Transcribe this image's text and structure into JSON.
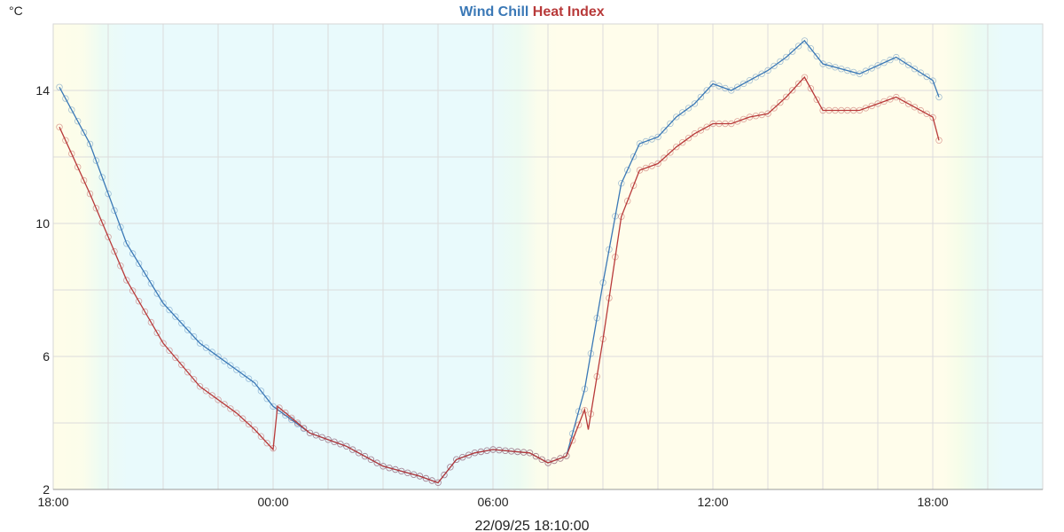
{
  "chart_data": {
    "type": "line",
    "title_parts": [
      {
        "text": "Wind Chill",
        "color": "#3a78b6"
      },
      {
        "text": "Heat Index",
        "color": "#b83a3a"
      }
    ],
    "y_unit": "°C",
    "timestamp": "22/09/25 18:10:00",
    "xlim": [
      0,
      27
    ],
    "ylim": [
      2,
      16
    ],
    "x_ticks": [
      {
        "value": 0,
        "label": "18:00"
      },
      {
        "value": 6,
        "label": "00:00"
      },
      {
        "value": 12,
        "label": "06:00"
      },
      {
        "value": 18,
        "label": "12:00"
      },
      {
        "value": 24,
        "label": "18:00"
      }
    ],
    "y_ticks": [
      2,
      6,
      10,
      14
    ],
    "grid": true,
    "series": [
      {
        "name": "Wind Chill",
        "color": "#3a78b6",
        "x": [
          0.17,
          1,
          2,
          3,
          4,
          5,
          5.5,
          6,
          7,
          8,
          9,
          10,
          10.5,
          11,
          11.5,
          12,
          13,
          13.5,
          14,
          14.5,
          15,
          15.5,
          16,
          16.5,
          17,
          17.5,
          18,
          18.5,
          19,
          19.5,
          20,
          20.5,
          21,
          22,
          23,
          24,
          24.17
        ],
        "y": [
          14.1,
          12.4,
          9.4,
          7.6,
          6.4,
          5.6,
          5.2,
          4.5,
          3.7,
          3.3,
          2.7,
          2.4,
          2.2,
          2.9,
          3.1,
          3.2,
          3.1,
          2.8,
          3.0,
          5.0,
          8.2,
          11.2,
          12.4,
          12.6,
          13.2,
          13.6,
          14.2,
          14.0,
          14.3,
          14.6,
          15.0,
          15.5,
          14.8,
          14.5,
          15.0,
          14.3,
          13.8
        ]
      },
      {
        "name": "Heat Index",
        "color": "#b83a3a",
        "x": [
          0.17,
          1,
          2,
          3,
          4,
          5,
          5.5,
          6,
          6.12,
          7,
          8,
          9,
          10,
          10.5,
          11,
          11.5,
          12,
          13,
          13.5,
          14,
          14.5,
          14.6,
          15,
          15.5,
          16,
          16.5,
          17,
          17.5,
          18,
          18.5,
          19,
          19.5,
          20,
          20.5,
          21,
          22,
          23,
          24,
          24.17
        ],
        "y": [
          12.9,
          10.9,
          8.3,
          6.4,
          5.1,
          4.3,
          3.8,
          3.2,
          4.5,
          3.7,
          3.3,
          2.7,
          2.4,
          2.2,
          2.9,
          3.1,
          3.2,
          3.1,
          2.8,
          3.0,
          4.4,
          3.8,
          6.5,
          10.2,
          11.6,
          11.8,
          12.3,
          12.7,
          13.0,
          13.0,
          13.2,
          13.3,
          13.8,
          14.4,
          13.4,
          13.4,
          13.8,
          13.2,
          12.5
        ]
      }
    ]
  }
}
